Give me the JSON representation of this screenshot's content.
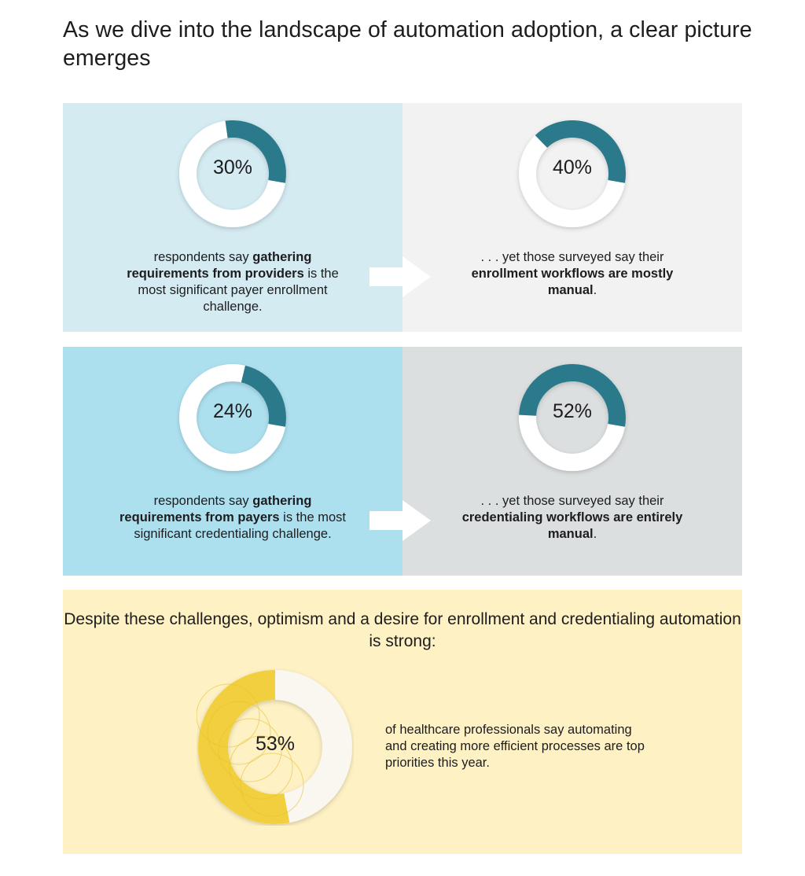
{
  "headline": "As we dive into the landscape of automation adoption, a clear picture emerges",
  "colors": {
    "teal": "#2b7a8b",
    "ring_white": "#ffffff",
    "yellow": "#f2cf3e",
    "cream": "#faf7f0",
    "panel_light_blue": "#d4ebf2",
    "panel_light_gray": "#f2f2f2",
    "panel_blue": "#ade0ef",
    "panel_gray": "#dcdfe0",
    "panel_yellow": "#fef1c4"
  },
  "panels": [
    {
      "pct_label": "30%",
      "cap1": "respondents say ",
      "cap2": "gathering requirements from providers",
      "cap3": " is the most significant payer enrollment challenge."
    },
    {
      "pct_label": "40%",
      "cap1": ". . . yet those surveyed say their ",
      "cap2": "enrollment workflows are mostly manual",
      "cap3": "."
    },
    {
      "pct_label": "24%",
      "cap1": "respondents say ",
      "cap2": "gathering requirements from payers",
      "cap3": " is the most significant credentialing challenge."
    },
    {
      "pct_label": "52%",
      "cap1": ". . . yet those surveyed say their ",
      "cap2": "credentialing workflows are entirely manual",
      "cap3": "."
    }
  ],
  "bottom": {
    "title": "Despite these challenges, optimism and a desire for enrollment and credentialing automation is strong:",
    "pct_label": "53%",
    "caption": "of healthcare professionals say automating and creating more efficient processes are top priorities this year."
  },
  "chart_data": [
    {
      "type": "pie",
      "values": [
        30,
        70
      ],
      "labels": [
        "30%",
        ""
      ]
    },
    {
      "type": "pie",
      "values": [
        40,
        60
      ],
      "labels": [
        "40%",
        ""
      ]
    },
    {
      "type": "pie",
      "values": [
        24,
        76
      ],
      "labels": [
        "24%",
        ""
      ]
    },
    {
      "type": "pie",
      "values": [
        52,
        48
      ],
      "labels": [
        "52%",
        ""
      ]
    },
    {
      "type": "pie",
      "values": [
        53,
        47
      ],
      "labels": [
        "53%",
        ""
      ]
    }
  ]
}
